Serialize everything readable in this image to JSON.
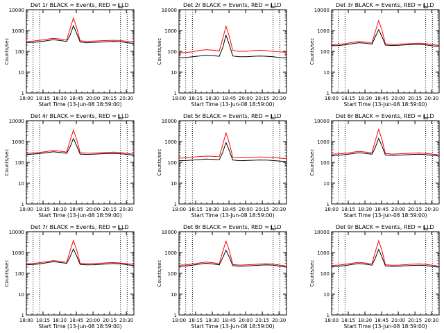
{
  "figure": {
    "date_label": "13-Jun-08 18:59:00",
    "xaxis_title": "Start Time (13-Jun-08 18:59:00)",
    "ylabel": "Counts/sec",
    "x_tick_labels": [
      "18:00",
      "18:15",
      "18:30",
      "18:45",
      "20:00",
      "20:15",
      "20:30"
    ],
    "y_tick_labels": [
      "1",
      "10",
      "100",
      "1000",
      "10000"
    ],
    "colors": {
      "events": "#000000",
      "lld": "#ff0000",
      "axes": "#000000"
    }
  },
  "chart_data": [
    {
      "type": "line",
      "title": "Det 1r BLACK = Events, RED = LLD",
      "xlabel": "Start Time (13-Jun-08 18:59:00)",
      "ylabel": "Counts/sec",
      "xlim_min": [
        0,
        160
      ],
      "ylim_log": [
        1,
        10000
      ],
      "x_min": [
        0,
        10,
        20,
        30,
        40,
        50,
        60,
        65,
        70,
        75,
        80,
        90,
        100,
        110,
        120,
        130,
        140,
        150,
        160
      ],
      "series": [
        {
          "name": "Events",
          "color": "#000000",
          "values": [
            260,
            270,
            290,
            320,
            360,
            330,
            300,
            600,
            1700,
            700,
            280,
            260,
            270,
            280,
            290,
            300,
            290,
            260,
            240
          ]
        },
        {
          "name": "LLD",
          "color": "#ff0000",
          "values": [
            300,
            310,
            340,
            380,
            420,
            390,
            350,
            1200,
            4000,
            1300,
            320,
            300,
            310,
            320,
            330,
            340,
            330,
            300,
            280
          ]
        }
      ],
      "vlines_min": [
        10,
        20,
        140,
        150
      ]
    },
    {
      "type": "line",
      "title": "Det 2r BLACK = Events, RED = LLD",
      "xlabel": "Start Time (13-Jun-08 18:59:00)",
      "ylabel": "Counts/sec",
      "xlim_min": [
        0,
        160
      ],
      "ylim_log": [
        1,
        10000
      ],
      "x_min": [
        0,
        10,
        20,
        30,
        40,
        50,
        60,
        65,
        70,
        75,
        80,
        90,
        100,
        110,
        120,
        130,
        140,
        150,
        160
      ],
      "series": [
        {
          "name": "Events",
          "color": "#000000",
          "values": [
            50,
            50,
            55,
            60,
            65,
            62,
            58,
            150,
            600,
            200,
            60,
            55,
            55,
            58,
            60,
            58,
            55,
            50,
            48
          ]
        },
        {
          "name": "LLD",
          "color": "#ff0000",
          "values": [
            85,
            88,
            95,
            110,
            120,
            115,
            105,
            400,
            1600,
            500,
            110,
            100,
            100,
            108,
            112,
            108,
            100,
            95,
            90
          ]
        }
      ],
      "vlines_min": [
        10,
        20,
        140,
        150
      ]
    },
    {
      "type": "line",
      "title": "Det 3r BLACK = Events, RED = LLD",
      "xlabel": "Start Time (13-Jun-08 18:59:00)",
      "ylabel": "Counts/sec",
      "xlim_min": [
        0,
        160
      ],
      "ylim_log": [
        1,
        10000
      ],
      "x_min": [
        0,
        10,
        20,
        30,
        40,
        50,
        60,
        65,
        70,
        75,
        80,
        90,
        100,
        110,
        120,
        130,
        140,
        150,
        160
      ],
      "series": [
        {
          "name": "Events",
          "color": "#000000",
          "values": [
            185,
            190,
            205,
            230,
            260,
            245,
            220,
            500,
            1100,
            500,
            200,
            190,
            195,
            205,
            210,
            215,
            205,
            185,
            170
          ]
        },
        {
          "name": "LLD",
          "color": "#ff0000",
          "values": [
            210,
            215,
            235,
            265,
            300,
            280,
            250,
            900,
            3000,
            1000,
            230,
            215,
            220,
            230,
            240,
            245,
            235,
            210,
            190
          ]
        }
      ],
      "vlines_min": [
        10,
        20,
        140,
        150
      ]
    },
    {
      "type": "line",
      "title": "Det 4r BLACK = Events, RED = LLD",
      "xlabel": "Start Time (13-Jun-08 18:59:00)",
      "ylabel": "Counts/sec",
      "xlim_min": [
        0,
        160
      ],
      "ylim_log": [
        1,
        10000
      ],
      "x_min": [
        0,
        10,
        20,
        30,
        40,
        50,
        60,
        65,
        70,
        75,
        80,
        90,
        100,
        110,
        120,
        130,
        140,
        150,
        160
      ],
      "series": [
        {
          "name": "Events",
          "color": "#000000",
          "values": [
            240,
            250,
            265,
            290,
            320,
            300,
            270,
            550,
            1400,
            600,
            250,
            240,
            245,
            255,
            265,
            270,
            260,
            240,
            220
          ]
        },
        {
          "name": "LLD",
          "color": "#ff0000",
          "values": [
            270,
            280,
            300,
            330,
            370,
            345,
            310,
            1100,
            3500,
            1200,
            290,
            275,
            280,
            290,
            300,
            310,
            295,
            270,
            250
          ]
        }
      ],
      "vlines_min": [
        10,
        20,
        140,
        150
      ]
    },
    {
      "type": "line",
      "title": "Det 5r BLACK = Events, RED = LLD",
      "xlabel": "Start Time (13-Jun-08 18:59:00)",
      "ylabel": "Counts/sec",
      "xlim_min": [
        0,
        160
      ],
      "ylim_log": [
        1,
        10000
      ],
      "x_min": [
        0,
        10,
        20,
        30,
        40,
        50,
        60,
        65,
        70,
        75,
        80,
        90,
        100,
        110,
        120,
        130,
        140,
        150,
        160
      ],
      "series": [
        {
          "name": "Events",
          "color": "#000000",
          "values": [
            120,
            122,
            128,
            135,
            145,
            140,
            132,
            300,
            900,
            350,
            130,
            120,
            122,
            126,
            130,
            128,
            122,
            115,
            108
          ]
        },
        {
          "name": "LLD",
          "color": "#ff0000",
          "values": [
            160,
            165,
            175,
            190,
            200,
            195,
            185,
            700,
            2600,
            800,
            175,
            165,
            168,
            175,
            180,
            178,
            170,
            160,
            150
          ]
        }
      ],
      "vlines_min": [
        10,
        20,
        140,
        150
      ]
    },
    {
      "type": "line",
      "title": "Det 6r BLACK = Events, RED = LLD",
      "xlabel": "Start Time (13-Jun-08 18:59:00)",
      "ylabel": "Counts/sec",
      "xlim_min": [
        0,
        160
      ],
      "ylim_log": [
        1,
        10000
      ],
      "x_min": [
        0,
        10,
        20,
        30,
        40,
        50,
        60,
        65,
        70,
        75,
        80,
        90,
        100,
        110,
        120,
        130,
        140,
        150,
        160
      ],
      "series": [
        {
          "name": "Events",
          "color": "#000000",
          "values": [
            210,
            220,
            235,
            260,
            290,
            270,
            245,
            520,
            1400,
            600,
            225,
            215,
            220,
            230,
            240,
            245,
            235,
            215,
            200
          ]
        },
        {
          "name": "LLD",
          "color": "#ff0000",
          "values": [
            245,
            255,
            270,
            300,
            340,
            315,
            285,
            1100,
            3800,
            1200,
            265,
            250,
            255,
            265,
            275,
            285,
            270,
            250,
            230
          ]
        }
      ],
      "vlines_min": [
        10,
        20,
        140,
        150
      ]
    },
    {
      "type": "line",
      "title": "Det 7r BLACK = Events, RED = LLD",
      "xlabel": "Start Time (13-Jun-08 18:59:00)",
      "ylabel": "Counts/sec",
      "xlim_min": [
        0,
        160
      ],
      "ylim_log": [
        1,
        10000
      ],
      "x_min": [
        0,
        10,
        20,
        30,
        40,
        50,
        60,
        65,
        70,
        75,
        80,
        90,
        100,
        110,
        120,
        130,
        140,
        150,
        160
      ],
      "series": [
        {
          "name": "Events",
          "color": "#000000",
          "values": [
            260,
            265,
            285,
            320,
            360,
            335,
            300,
            620,
            1500,
            650,
            270,
            255,
            260,
            270,
            285,
            295,
            285,
            260,
            235
          ]
        },
        {
          "name": "LLD",
          "color": "#ff0000",
          "values": [
            290,
            300,
            325,
            365,
            410,
            380,
            340,
            1200,
            3800,
            1300,
            305,
            290,
            295,
            305,
            320,
            330,
            315,
            290,
            265
          ]
        }
      ],
      "vlines_min": [
        10,
        20,
        140,
        150
      ]
    },
    {
      "type": "line",
      "title": "Det 8r BLACK = Events, RED = LLD",
      "xlabel": "Start Time (13-Jun-08 18:59:00)",
      "ylabel": "Counts/sec",
      "xlim_min": [
        0,
        160
      ],
      "ylim_log": [
        1,
        10000
      ],
      "x_min": [
        0,
        10,
        20,
        30,
        40,
        50,
        60,
        65,
        70,
        75,
        80,
        90,
        100,
        110,
        120,
        130,
        140,
        150,
        160
      ],
      "series": [
        {
          "name": "Events",
          "color": "#000000",
          "values": [
            215,
            225,
            245,
            275,
            305,
            285,
            255,
            560,
            1300,
            580,
            235,
            220,
            225,
            235,
            245,
            255,
            245,
            220,
            200
          ]
        },
        {
          "name": "LLD",
          "color": "#ff0000",
          "values": [
            245,
            255,
            280,
            315,
            350,
            325,
            290,
            1100,
            3500,
            1200,
            265,
            250,
            255,
            265,
            280,
            290,
            275,
            250,
            225
          ]
        }
      ],
      "vlines_min": [
        10,
        20,
        140,
        150
      ]
    },
    {
      "type": "line",
      "title": "Det 9r BLACK = Events, RED = LLD",
      "xlabel": "Start Time (13-Jun-08 18:59:00)",
      "ylabel": "Counts/sec",
      "xlim_min": [
        0,
        160
      ],
      "ylim_log": [
        1,
        10000
      ],
      "x_min": [
        0,
        10,
        20,
        30,
        40,
        50,
        60,
        65,
        70,
        75,
        80,
        90,
        100,
        110,
        120,
        130,
        140,
        150,
        160
      ],
      "series": [
        {
          "name": "Events",
          "color": "#000000",
          "values": [
            210,
            218,
            235,
            265,
            295,
            275,
            248,
            540,
            1400,
            600,
            228,
            215,
            220,
            230,
            240,
            248,
            238,
            215,
            198
          ]
        },
        {
          "name": "LLD",
          "color": "#ff0000",
          "values": [
            240,
            250,
            270,
            305,
            340,
            315,
            282,
            1100,
            3600,
            1200,
            260,
            245,
            250,
            262,
            275,
            285,
            270,
            245,
            222
          ]
        }
      ],
      "vlines_min": [
        10,
        20,
        140,
        150
      ]
    }
  ]
}
